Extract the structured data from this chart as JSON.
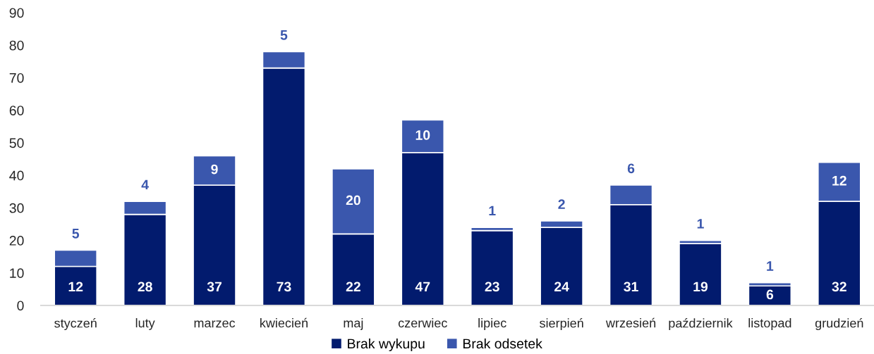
{
  "chart_data": {
    "type": "bar",
    "stacked": true,
    "categories": [
      "styczeń",
      "luty",
      "marzec",
      "kwiecień",
      "maj",
      "czerwiec",
      "lipiec",
      "sierpień",
      "wrzesień",
      "październik",
      "listopad",
      "grudzień"
    ],
    "series": [
      {
        "name": "Brak wykupu",
        "color": "#021b6e",
        "values": [
          12,
          28,
          37,
          73,
          22,
          47,
          23,
          24,
          31,
          19,
          6,
          32
        ]
      },
      {
        "name": "Brak odsetek",
        "color": "#3a57ad",
        "values": [
          5,
          4,
          9,
          5,
          20,
          10,
          1,
          2,
          6,
          1,
          1,
          12
        ]
      }
    ],
    "ylim": [
      0,
      90
    ],
    "yticks": [
      0,
      10,
      20,
      30,
      40,
      50,
      60,
      70,
      80,
      90
    ],
    "data_labels": true,
    "legend": "bottom"
  }
}
